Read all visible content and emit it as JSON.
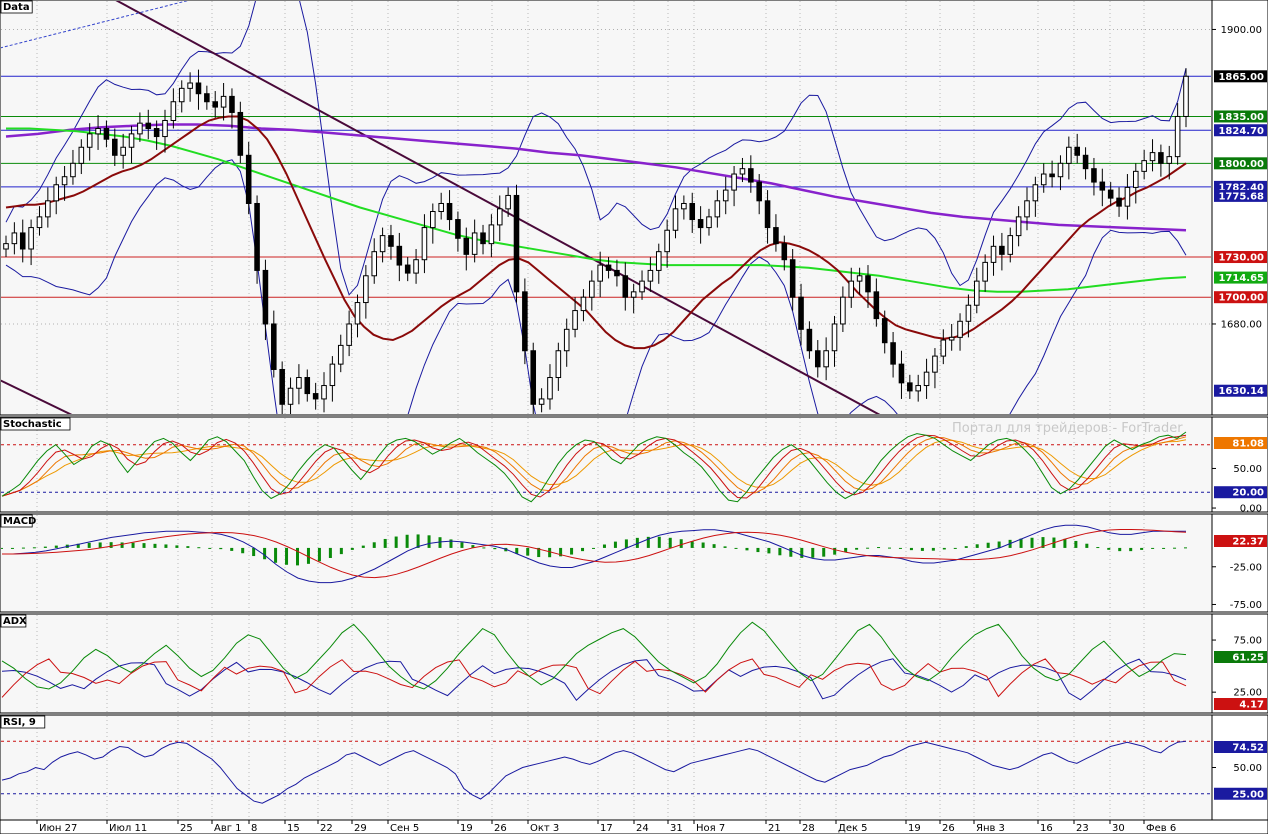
{
  "chart_data": [
    {
      "panel": "Data",
      "type": "candlestick",
      "title": "Data",
      "ylim": [
        1612,
        1922
      ],
      "yticks": [
        1900.0,
        1680.0
      ],
      "price_markers": [
        {
          "value": 1865.0,
          "label": "1865.00",
          "color": "#000000",
          "line_color": "#2222cc"
        },
        {
          "value": 1835.0,
          "label": "1835.00",
          "color": "#0a7a0a",
          "line_color": "#0a8a0a"
        },
        {
          "value": 1824.7,
          "label": "1824.70",
          "color": "#1a1aa0",
          "line_color": "#2222cc"
        },
        {
          "value": 1800.0,
          "label": "1800.00",
          "color": "#0a7a0a",
          "line_color": "#0a8a0a"
        },
        {
          "value": 1782.4,
          "label": "1782.40",
          "color": "#1a1aa0",
          "line_color": "#2222cc"
        },
        {
          "value": 1775.68,
          "label": "1775.68",
          "color": "#1a1aa0",
          "line_color": null
        },
        {
          "value": 1730.0,
          "label": "1730.00",
          "color": "#cc1111",
          "line_color": "#cc2222"
        },
        {
          "value": 1714.65,
          "label": "1714.65",
          "color": "#11aa11",
          "line_color": null
        },
        {
          "value": 1700.0,
          "label": "1700.00",
          "color": "#cc1111",
          "line_color": "#cc2222"
        },
        {
          "value": 1630.14,
          "label": "1630.14",
          "color": "#1a1aa0",
          "line_color": null
        }
      ],
      "close": [
        1740,
        1748,
        1736,
        1752,
        1760,
        1772,
        1784,
        1790,
        1800,
        1812,
        1822,
        1826,
        1818,
        1806,
        1812,
        1822,
        1830,
        1826,
        1820,
        1832,
        1846,
        1856,
        1860,
        1852,
        1846,
        1842,
        1850,
        1838,
        1806,
        1770,
        1720,
        1680,
        1646,
        1620,
        1632,
        1640,
        1628,
        1624,
        1634,
        1650,
        1664,
        1680,
        1696,
        1716,
        1734,
        1746,
        1738,
        1724,
        1718,
        1728,
        1752,
        1764,
        1770,
        1758,
        1744,
        1732,
        1748,
        1740,
        1754,
        1766,
        1776,
        1704,
        1660,
        1620,
        1624,
        1640,
        1660,
        1676,
        1690,
        1700,
        1712,
        1724,
        1720,
        1716,
        1700,
        1704,
        1712,
        1720,
        1734,
        1750,
        1766,
        1770,
        1758,
        1752,
        1760,
        1772,
        1780,
        1792,
        1796,
        1786,
        1772,
        1752,
        1740,
        1728,
        1700,
        1676,
        1660,
        1648,
        1660,
        1680,
        1700,
        1712,
        1716,
        1704,
        1684,
        1666,
        1650,
        1636,
        1630,
        1634,
        1644,
        1656,
        1668,
        1670,
        1682,
        1694,
        1712,
        1726,
        1738,
        1732,
        1746,
        1760,
        1772,
        1784,
        1792,
        1790,
        1800,
        1812,
        1806,
        1796,
        1786,
        1780,
        1774,
        1768,
        1782,
        1794,
        1802,
        1808,
        1800,
        1805,
        1835,
        1865
      ],
      "ma_red": [
        1767,
        1768,
        1769,
        1769,
        1770,
        1772,
        1774,
        1776,
        1779,
        1783,
        1787,
        1791,
        1794,
        1796,
        1799,
        1803,
        1808,
        1813,
        1818,
        1823,
        1828,
        1832,
        1834,
        1835,
        1835,
        1832,
        1826,
        1818,
        1806,
        1792,
        1776,
        1760,
        1744,
        1728,
        1713,
        1698,
        1686,
        1678,
        1672,
        1669,
        1668,
        1671,
        1675,
        1681,
        1687,
        1693,
        1698,
        1702,
        1706,
        1712,
        1718,
        1724,
        1728,
        1729,
        1726,
        1720,
        1714,
        1708,
        1702,
        1696,
        1690,
        1682,
        1674,
        1668,
        1664,
        1662,
        1662,
        1664,
        1668,
        1674,
        1682,
        1690,
        1698,
        1704,
        1710,
        1715,
        1722,
        1729,
        1735,
        1739,
        1741,
        1740,
        1738,
        1735,
        1731,
        1726,
        1720,
        1712,
        1704,
        1697,
        1690,
        1684,
        1679,
        1676,
        1674,
        1672,
        1670,
        1669,
        1670,
        1672,
        1676,
        1681,
        1686,
        1691,
        1697,
        1704,
        1712,
        1720,
        1728,
        1736,
        1744,
        1752,
        1758,
        1763,
        1768,
        1772,
        1775,
        1779,
        1782,
        1786,
        1790,
        1795,
        1800
      ],
      "ma_green": [
        1826,
        1826,
        1825,
        1824,
        1822,
        1820,
        1817,
        1813,
        1808,
        1803,
        1797,
        1791,
        1785,
        1779,
        1773,
        1767,
        1762,
        1757,
        1752,
        1747,
        1743,
        1740,
        1737,
        1734,
        1731,
        1728,
        1726,
        1725,
        1724,
        1724,
        1724,
        1724,
        1724,
        1723,
        1722,
        1720,
        1718,
        1716,
        1713,
        1710,
        1707,
        1705,
        1704,
        1704,
        1705,
        1706,
        1708,
        1710,
        1712,
        1714,
        1715
      ],
      "ma_purple": [
        1820,
        1822,
        1825,
        1827,
        1828,
        1829,
        1829,
        1828,
        1826,
        1825,
        1823,
        1821,
        1819,
        1817,
        1815,
        1813,
        1811,
        1808,
        1806,
        1803,
        1800,
        1797,
        1793,
        1789,
        1785,
        1780,
        1775,
        1771,
        1767,
        1763,
        1760,
        1758,
        1756,
        1754,
        1753,
        1752,
        1751,
        1750
      ],
      "trend_line": {
        "from_value": 1930,
        "to_value": 1612
      },
      "trend_line_2": {
        "from_value": 1638,
        "to_value": 1612
      }
    },
    {
      "panel": "Stochastic",
      "type": "line",
      "title": "Stochastic",
      "ylim": [
        -5,
        115
      ],
      "yticks": [
        50.0,
        0.0
      ],
      "levels": [
        80,
        20
      ],
      "markers": [
        {
          "label": "81.08",
          "color": "#ee7700"
        },
        {
          "label": "20.00",
          "color": "#1a1aa0"
        }
      ],
      "series": [
        {
          "values": [
            15,
            22,
            30,
            45,
            60,
            72,
            80,
            68,
            55,
            62,
            78,
            85,
            80,
            60,
            45,
            58,
            72,
            84,
            88,
            82,
            70,
            60,
            72,
            86,
            90,
            84,
            72,
            60,
            40,
            22,
            12,
            18,
            30,
            46,
            60,
            72,
            80,
            76,
            62,
            48,
            36,
            50,
            66,
            80,
            86,
            88,
            84,
            76,
            68,
            74,
            82,
            88,
            80,
            70,
            62,
            54,
            44,
            30,
            14,
            8,
            20,
            38,
            56,
            70,
            80,
            86,
            84,
            74,
            62,
            56,
            68,
            80,
            86,
            90,
            88,
            80,
            70,
            62,
            52,
            38,
            22,
            10,
            8,
            20,
            36,
            50,
            64,
            74,
            80,
            72,
            60,
            46,
            32,
            20,
            12,
            18,
            30,
            44,
            60,
            72,
            82,
            90,
            94,
            92,
            88,
            80,
            72,
            66,
            60,
            70,
            80,
            86,
            88,
            84,
            74,
            62,
            44,
            26,
            18,
            24,
            36,
            50,
            64,
            78,
            86,
            80,
            74,
            80,
            84,
            90,
            92,
            88,
            96
          ]
        }
      ]
    },
    {
      "panel": "MACD",
      "type": "line",
      "title": "MACD",
      "ylim": [
        -85,
        45
      ],
      "yticks": [
        -25.0,
        -75.0
      ],
      "markers": [
        {
          "label": "22.37",
          "color": "#cc1111"
        }
      ],
      "series": [
        {
          "values": [
            -8,
            -8,
            -7,
            -6,
            -4,
            -1,
            2,
            5,
            8,
            11,
            14,
            16,
            18,
            20,
            21,
            22,
            22,
            22,
            21,
            20,
            18,
            14,
            8,
            0,
            -10,
            -22,
            -32,
            -40,
            -44,
            -46,
            -46,
            -44,
            -40,
            -34,
            -28,
            -20,
            -12,
            -4,
            2,
            6,
            8,
            9,
            8,
            6,
            4,
            2,
            -2,
            -8,
            -14,
            -20,
            -24,
            -26,
            -26,
            -22,
            -18,
            -12,
            -6,
            0,
            6,
            12,
            17,
            20,
            22,
            23,
            24,
            24,
            22,
            20,
            16,
            12,
            8,
            2,
            -4,
            -10,
            -14,
            -16,
            -16,
            -14,
            -12,
            -10,
            -10,
            -12,
            -14,
            -18,
            -20,
            -20,
            -18,
            -16,
            -12,
            -8,
            -4,
            0,
            6,
            12,
            18,
            24,
            28,
            30,
            30,
            28,
            24,
            20,
            18,
            18,
            20,
            22,
            22,
            22,
            22
          ]
        }
      ]
    },
    {
      "panel": "ADX",
      "type": "line",
      "title": "ADX",
      "ylim": [
        5,
        100
      ],
      "yticks": [
        75.0,
        25.0
      ],
      "markers": [
        {
          "label": "61.25",
          "color": "#0a7a0a"
        },
        {
          "label": "4.17",
          "color": "#cc1111"
        }
      ],
      "series": [
        {
          "values": [
            55,
            48,
            38,
            30,
            28,
            34,
            45,
            58,
            66,
            60,
            50,
            44,
            52,
            62,
            70,
            60,
            48,
            40,
            46,
            58,
            72,
            80,
            76,
            62,
            48,
            38,
            44,
            56,
            68,
            82,
            90,
            78,
            64,
            50,
            40,
            32,
            28,
            36,
            48,
            62,
            74,
            86,
            80,
            64,
            50,
            40,
            32,
            38,
            50,
            62,
            70,
            76,
            82,
            86,
            78,
            66,
            54,
            46,
            40,
            34,
            40,
            52,
            68,
            82,
            92,
            84,
            70,
            56,
            44,
            36,
            42,
            56,
            70,
            84,
            90,
            78,
            62,
            48,
            40,
            36,
            44,
            58,
            70,
            80,
            86,
            90,
            76,
            60,
            48,
            40,
            36,
            42,
            54,
            66,
            74,
            62,
            50,
            40,
            46,
            56,
            62,
            61
          ]
        }
      ]
    },
    {
      "panel": "RSI",
      "type": "line",
      "title": "RSI, 9",
      "ylim": [
        0,
        100
      ],
      "yticks": [
        50.0
      ],
      "levels": [
        75,
        25
      ],
      "markers": [
        {
          "label": "74.52",
          "color": "#1a1aa0"
        },
        {
          "label": "25.00",
          "color": "#1a1aa0"
        }
      ],
      "series": [
        {
          "values": [
            38,
            40,
            44,
            46,
            50,
            48,
            55,
            60,
            63,
            65,
            62,
            58,
            60,
            66,
            70,
            69,
            64,
            60,
            62,
            68,
            72,
            74,
            73,
            68,
            63,
            58,
            50,
            40,
            30,
            24,
            18,
            16,
            20,
            24,
            30,
            34,
            40,
            44,
            48,
            52,
            56,
            62,
            64,
            60,
            56,
            52,
            56,
            60,
            64,
            66,
            62,
            58,
            54,
            50,
            44,
            30,
            24,
            20,
            26,
            34,
            42,
            46,
            50,
            52,
            54,
            56,
            58,
            60,
            58,
            55,
            53,
            56,
            60,
            64,
            66,
            64,
            60,
            56,
            52,
            48,
            46,
            50,
            54,
            56,
            58,
            60,
            62,
            64,
            66,
            68,
            66,
            62,
            58,
            54,
            50,
            46,
            42,
            38,
            36,
            40,
            44,
            48,
            50,
            52,
            56,
            60,
            62,
            66,
            70,
            72,
            74,
            72,
            70,
            68,
            66,
            64,
            60,
            56,
            52,
            50,
            48,
            50,
            54,
            58,
            62,
            64,
            60,
            56,
            54,
            58,
            62,
            66,
            70,
            72,
            74,
            72,
            70,
            66,
            64,
            70,
            74,
            75
          ]
        }
      ]
    }
  ],
  "xaxis_labels": [
    "Июн 27",
    "Июл 11",
    "25",
    "Авг 1",
    "8",
    "15",
    "22",
    "29",
    "Сен 5",
    "19",
    "26",
    "Окт 3",
    "17",
    "24",
    "31",
    "Ноя 7",
    "21",
    "28",
    "Дек 5",
    "19",
    "26",
    "Янв 3",
    "16",
    "23",
    "30",
    "Фев 6"
  ],
  "watermark": "Портал для трейдеров - ForTrader"
}
